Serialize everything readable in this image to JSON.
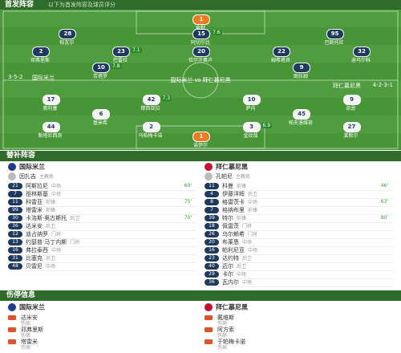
{
  "header": {
    "title": "首发阵容",
    "note": "以下为首发阵容及球员评分"
  },
  "pitch": {
    "center": "国际米兰 vs 拜仁慕尼黑",
    "home": {
      "name": "国际米兰",
      "formation": "3-5-2",
      "lines": [
        [
          {
            "number": "1",
            "name": "索默"
          }
        ],
        [
          {
            "number": "28",
            "name": "帕瓦尔"
          },
          {
            "number": "15",
            "name": "阿切尔比",
            "rating": "7.6"
          },
          {
            "number": "95",
            "name": "巴斯托尼"
          }
        ],
        [
          {
            "number": "2",
            "name": "邓弗里斯"
          },
          {
            "number": "23",
            "name": "巴雷拉",
            "rating": "7.1"
          },
          {
            "number": "20",
            "name": "恰尔汗奥卢"
          },
          {
            "number": "22",
            "name": "姆希塔良"
          },
          {
            "number": "32",
            "name": "迪马尔科"
          }
        ],
        [
          {
            "number": "10",
            "name": "劳塔罗",
            "rating": "7.8"
          },
          {
            "number": "9",
            "name": "图拉姆"
          }
        ]
      ]
    },
    "away": {
      "name": "拜仁慕尼黑",
      "formation": "4-2-3-1",
      "lines": [
        [
          {
            "number": "1",
            "name": "诺伊尔"
          }
        ],
        [
          {
            "number": "44",
            "name": "斯塔尼西奇"
          },
          {
            "number": "2",
            "name": "乌帕梅卡诺"
          },
          {
            "number": "3",
            "name": "金玟哉",
            "rating": "6.9"
          },
          {
            "number": "27",
            "name": "莱默尔"
          }
        ],
        [
          {
            "number": "6",
            "name": "基米希"
          },
          {
            "number": "45",
            "name": "帕夫洛维奇"
          }
        ],
        [
          {
            "number": "17",
            "name": "奥利塞"
          },
          {
            "number": "42",
            "name": "穆西亚拉",
            "rating": "7.3"
          },
          {
            "number": "10",
            "name": "萨内"
          },
          {
            "number": "9",
            "name": "凯恩"
          }
        ]
      ]
    }
  },
  "subs_title": "替补阵容",
  "subs": [
    {
      "team": "国际米兰",
      "coach": {
        "name": "因扎吉",
        "role": "主教练"
      },
      "players": [
        {
          "number": "21",
          "name": "阿斯拉尼",
          "pos": "中场",
          "minute": "60'"
        },
        {
          "number": "7",
          "name": "祖林斯基",
          "pos": "中场"
        },
        {
          "number": "11",
          "name": "科雷亚",
          "pos": "前锋",
          "minute": "75'"
        },
        {
          "number": "99",
          "name": "塔雷米",
          "pos": "前锋"
        },
        {
          "number": "30",
          "name": "卡洛斯·奥古斯托",
          "pos": "后卫",
          "minute": "70'"
        },
        {
          "number": "36",
          "name": "达米安",
          "pos": "后卫"
        },
        {
          "number": "12",
          "name": "迪占纳罗",
          "pos": "门将"
        },
        {
          "number": "13",
          "name": "约瑟普·马丁内斯",
          "pos": "门将"
        },
        {
          "number": "16",
          "name": "弗拉泰西",
          "pos": "中场"
        },
        {
          "number": "31",
          "name": "比塞克",
          "pos": "后卫"
        },
        {
          "number": "48",
          "name": "贝雷尼",
          "pos": "中场"
        }
      ]
    },
    {
      "team": "拜仁慕尼黑",
      "coach": {
        "name": "孔帕尼",
        "role": "主教练"
      },
      "players": [
        {
          "number": "11",
          "name": "科曼",
          "pos": "前锋",
          "minute": "46'"
        },
        {
          "number": "4",
          "name": "伊藤洋辉",
          "pos": "后卫"
        },
        {
          "number": "8",
          "name": "格雷茨卡",
          "pos": "中场",
          "minute": "63'"
        },
        {
          "number": "7",
          "name": "格纳布里",
          "pos": "前锋"
        },
        {
          "number": "39",
          "name": "特尔",
          "pos": "前锋",
          "minute": "80'"
        },
        {
          "number": "18",
          "name": "佩雷茨",
          "pos": "门将"
        },
        {
          "number": "26",
          "name": "乌尔赖希",
          "pos": "门将"
        },
        {
          "number": "20",
          "name": "布莱恩",
          "pos": "中场"
        },
        {
          "number": "16",
          "name": "帕利尼亚",
          "pos": "中场"
        },
        {
          "number": "23",
          "name": "达约特",
          "pos": "后卫"
        },
        {
          "number": "40",
          "name": "迈尔",
          "pos": "后卫"
        },
        {
          "number": "29",
          "name": "卡尔",
          "pos": "中场"
        },
        {
          "number": "36",
          "name": "瓦内尔",
          "pos": "中场"
        }
      ]
    }
  ],
  "injury_title": "伤停信息",
  "injuries": [
    {
      "team": "国际米兰",
      "players": [
        {
          "name": "达米安",
          "status": "伤病"
        },
        {
          "name": "邓弗里斯",
          "status": "伤病"
        },
        {
          "name": "塔雷米",
          "status": "伤病"
        }
      ]
    },
    {
      "team": "拜仁慕尼黑",
      "players": [
        {
          "name": "戴维斯",
          "status": "伤病"
        },
        {
          "name": "阿方索",
          "status": "伤病"
        },
        {
          "name": "于帕梅卡诺",
          "status": "伤病"
        }
      ]
    }
  ]
}
